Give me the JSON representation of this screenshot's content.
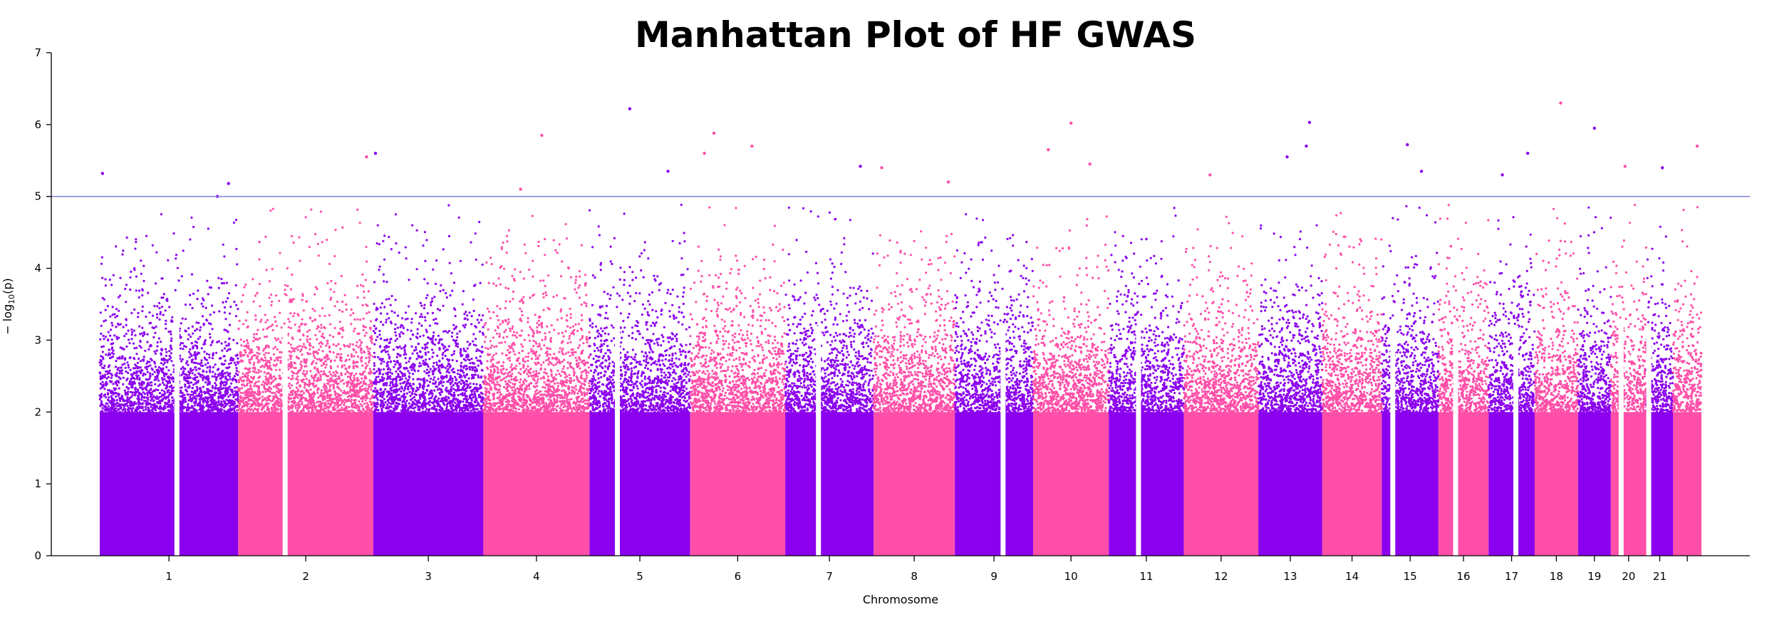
{
  "chart_data": {
    "type": "scatter",
    "title": "Manhattan Plot of HF GWAS",
    "xlabel": "Chromosome",
    "ylabel_main": "− log",
    "ylabel_sub": "10",
    "ylabel_tail": "(p)",
    "ylim": [
      0,
      7
    ],
    "yticks": [
      0,
      1,
      2,
      3,
      4,
      5,
      6,
      7
    ],
    "significance_threshold": 5,
    "threshold_color": "#8080e0",
    "colors": {
      "odd_group": "#8b00ee",
      "even_group": "#ff4fa8"
    },
    "chromosomes": [
      "1",
      "2",
      "3",
      "4",
      "5",
      "6",
      "7",
      "8",
      "9",
      "10",
      "11",
      "12",
      "13",
      "14",
      "15",
      "16",
      "17",
      "18",
      "19",
      "20",
      "21",
      "22"
    ],
    "chromosome_tick_labels": [
      "1",
      "2",
      "3",
      "4",
      "5",
      "6",
      "7",
      "8",
      "9",
      "10",
      "11",
      "12",
      "13",
      "14",
      "15",
      "16",
      "17",
      "18",
      "19",
      "20",
      "21",
      ""
    ],
    "chromosome_relative_lengths": [
      249,
      243,
      198,
      191,
      181,
      171,
      159,
      146,
      141,
      136,
      135,
      134,
      115,
      107,
      102,
      90,
      83,
      78,
      59,
      64,
      48,
      51
    ],
    "top_hits": [
      {
        "chr": "1",
        "pos": 0.02,
        "log10p": 5.32
      },
      {
        "chr": "1",
        "pos": 0.85,
        "log10p": 5.0
      },
      {
        "chr": "1",
        "pos": 0.93,
        "log10p": 5.18
      },
      {
        "chr": "2",
        "pos": 0.95,
        "log10p": 5.55
      },
      {
        "chr": "3",
        "pos": 0.02,
        "log10p": 5.6
      },
      {
        "chr": "4",
        "pos": 0.55,
        "log10p": 5.85
      },
      {
        "chr": "4",
        "pos": 0.35,
        "log10p": 5.1
      },
      {
        "chr": "5",
        "pos": 0.4,
        "log10p": 6.22
      },
      {
        "chr": "5",
        "pos": 0.78,
        "log10p": 5.35
      },
      {
        "chr": "6",
        "pos": 0.25,
        "log10p": 5.88
      },
      {
        "chr": "6",
        "pos": 0.65,
        "log10p": 5.7
      },
      {
        "chr": "6",
        "pos": 0.15,
        "log10p": 5.6
      },
      {
        "chr": "7",
        "pos": 0.85,
        "log10p": 5.42
      },
      {
        "chr": "8",
        "pos": 0.1,
        "log10p": 5.4
      },
      {
        "chr": "8",
        "pos": 0.92,
        "log10p": 5.2
      },
      {
        "chr": "10",
        "pos": 0.2,
        "log10p": 5.65
      },
      {
        "chr": "10",
        "pos": 0.5,
        "log10p": 6.02
      },
      {
        "chr": "10",
        "pos": 0.75,
        "log10p": 5.45
      },
      {
        "chr": "12",
        "pos": 0.35,
        "log10p": 5.3
      },
      {
        "chr": "13",
        "pos": 0.45,
        "log10p": 5.55
      },
      {
        "chr": "13",
        "pos": 0.75,
        "log10p": 5.7
      },
      {
        "chr": "13",
        "pos": 0.8,
        "log10p": 6.03
      },
      {
        "chr": "15",
        "pos": 0.45,
        "log10p": 5.72
      },
      {
        "chr": "15",
        "pos": 0.7,
        "log10p": 5.35
      },
      {
        "chr": "17",
        "pos": 0.3,
        "log10p": 5.3
      },
      {
        "chr": "17",
        "pos": 0.85,
        "log10p": 5.6
      },
      {
        "chr": "18",
        "pos": 0.6,
        "log10p": 6.3
      },
      {
        "chr": "19",
        "pos": 0.5,
        "log10p": 5.95
      },
      {
        "chr": "20",
        "pos": 0.4,
        "log10p": 5.42
      },
      {
        "chr": "21",
        "pos": 0.6,
        "log10p": 5.4
      },
      {
        "chr": "22",
        "pos": 0.85,
        "log10p": 5.7
      }
    ],
    "grid": false,
    "legend": "none"
  }
}
